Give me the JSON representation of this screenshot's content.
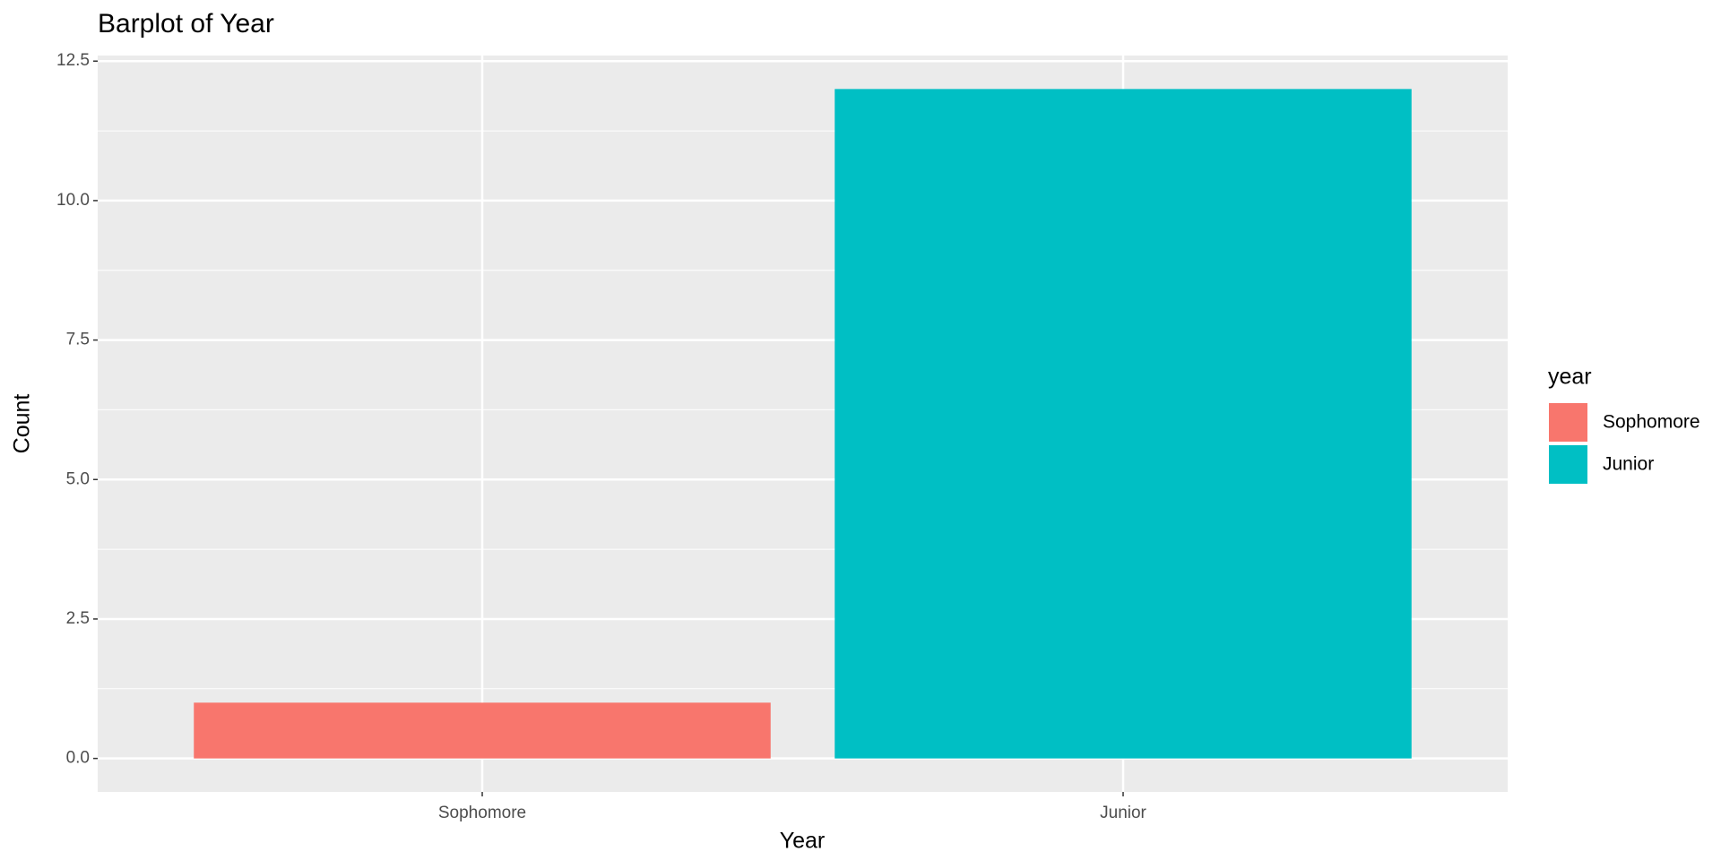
{
  "chart_data": {
    "type": "bar",
    "title": "Barplot of Year",
    "x_label": "Year",
    "y_label": "Count",
    "categories": [
      "Sophomore",
      "Junior"
    ],
    "values": [
      1,
      12
    ],
    "colors": [
      "#F8766D",
      "#00BFC4"
    ],
    "legend_title": "year",
    "legend": "right",
    "ylim": [
      -0.6,
      12.6
    ],
    "yticks": [
      {
        "value": 0,
        "label": "0.0"
      },
      {
        "value": 2.5,
        "label": "2.5"
      },
      {
        "value": 5,
        "label": "5.0"
      },
      {
        "value": 7.5,
        "label": "7.5"
      },
      {
        "value": 10,
        "label": "10.0"
      },
      {
        "value": 12.5,
        "label": "12.5"
      }
    ],
    "grid": true
  }
}
